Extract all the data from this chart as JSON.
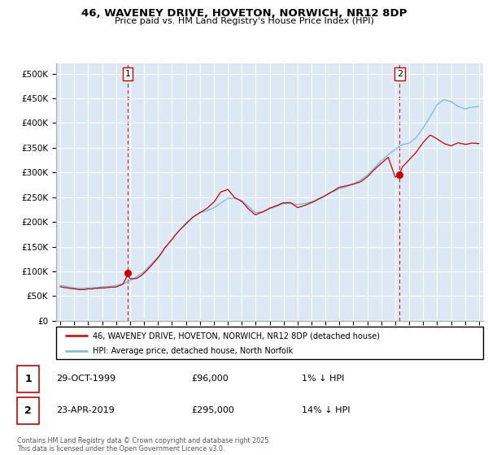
{
  "title": "46, WAVENEY DRIVE, HOVETON, NORWICH, NR12 8DP",
  "subtitle": "Price paid vs. HM Land Registry's House Price Index (HPI)",
  "legend_line1": "46, WAVENEY DRIVE, HOVETON, NORWICH, NR12 8DP (detached house)",
  "legend_line2": "HPI: Average price, detached house, North Norfolk",
  "sale1_date": "29-OCT-1999",
  "sale1_price": "£96,000",
  "sale1_hpi": "1% ↓ HPI",
  "sale2_date": "23-APR-2019",
  "sale2_price": "£295,000",
  "sale2_hpi": "14% ↓ HPI",
  "footnote": "Contains HM Land Registry data © Crown copyright and database right 2025.\nThis data is licensed under the Open Government Licence v3.0.",
  "hpi_color": "#7ab8d9",
  "price_color": "#cc0000",
  "vline_color": "#cc0000",
  "bg_color": "#ffffff",
  "plot_bg_color": "#dce9f5",
  "grid_color": "#ffffff",
  "ylim": [
    0,
    520000
  ],
  "yticks": [
    0,
    50000,
    100000,
    150000,
    200000,
    250000,
    300000,
    350000,
    400000,
    450000,
    500000
  ],
  "sale1_year": 1999.83,
  "sale1_value": 96000,
  "sale2_year": 2019.31,
  "sale2_value": 295000,
  "hpi_anchors_x": [
    1995.0,
    1995.5,
    1996.0,
    1996.5,
    1997.0,
    1997.5,
    1998.0,
    1998.5,
    1999.0,
    1999.5,
    2000.0,
    2000.5,
    2001.0,
    2001.5,
    2002.0,
    2002.5,
    2003.0,
    2003.5,
    2004.0,
    2004.5,
    2005.0,
    2005.5,
    2006.0,
    2006.5,
    2007.0,
    2007.5,
    2008.0,
    2008.5,
    2009.0,
    2009.5,
    2010.0,
    2010.5,
    2011.0,
    2011.5,
    2012.0,
    2012.5,
    2013.0,
    2013.5,
    2014.0,
    2014.5,
    2015.0,
    2015.5,
    2016.0,
    2016.5,
    2017.0,
    2017.5,
    2018.0,
    2018.5,
    2019.0,
    2019.5,
    2020.0,
    2020.5,
    2021.0,
    2021.5,
    2022.0,
    2022.5,
    2023.0,
    2023.5,
    2024.0,
    2024.5,
    2025.0
  ],
  "hpi_anchors_y": [
    72000,
    70000,
    68000,
    67000,
    68000,
    69000,
    70000,
    71000,
    73000,
    76000,
    82000,
    90000,
    100000,
    115000,
    130000,
    148000,
    165000,
    182000,
    198000,
    210000,
    218000,
    222000,
    228000,
    238000,
    248000,
    248000,
    244000,
    232000,
    220000,
    222000,
    228000,
    232000,
    238000,
    238000,
    236000,
    238000,
    242000,
    248000,
    255000,
    262000,
    268000,
    272000,
    278000,
    285000,
    295000,
    308000,
    322000,
    335000,
    345000,
    355000,
    358000,
    368000,
    388000,
    410000,
    435000,
    445000,
    440000,
    430000,
    425000,
    428000,
    430000
  ],
  "price_anchors_x": [
    1995.0,
    1995.5,
    1996.0,
    1996.5,
    1997.0,
    1997.5,
    1998.0,
    1998.5,
    1999.0,
    1999.5,
    1999.83,
    2000.0,
    2000.5,
    2001.0,
    2001.5,
    2002.0,
    2002.5,
    2003.0,
    2003.5,
    2004.0,
    2004.5,
    2005.0,
    2005.5,
    2006.0,
    2006.5,
    2007.0,
    2007.5,
    2008.0,
    2008.5,
    2009.0,
    2009.5,
    2010.0,
    2010.5,
    2011.0,
    2011.5,
    2012.0,
    2012.5,
    2013.0,
    2013.5,
    2014.0,
    2014.5,
    2015.0,
    2015.5,
    2016.0,
    2016.5,
    2017.0,
    2017.5,
    2018.0,
    2018.5,
    2019.0,
    2019.31,
    2019.5,
    2020.0,
    2020.5,
    2021.0,
    2021.5,
    2022.0,
    2022.5,
    2023.0,
    2023.5,
    2024.0,
    2024.5,
    2025.0
  ],
  "price_anchors_y": [
    72000,
    70000,
    67000,
    66000,
    67000,
    68000,
    69000,
    70000,
    72000,
    78000,
    96000,
    88000,
    88000,
    98000,
    112000,
    128000,
    148000,
    164000,
    182000,
    196000,
    210000,
    220000,
    228000,
    240000,
    260000,
    265000,
    248000,
    240000,
    224000,
    212000,
    218000,
    226000,
    232000,
    238000,
    238000,
    228000,
    232000,
    238000,
    245000,
    252000,
    260000,
    268000,
    272000,
    275000,
    280000,
    290000,
    305000,
    318000,
    330000,
    290000,
    295000,
    310000,
    325000,
    340000,
    360000,
    375000,
    368000,
    358000,
    352000,
    358000,
    355000,
    358000,
    358000
  ]
}
